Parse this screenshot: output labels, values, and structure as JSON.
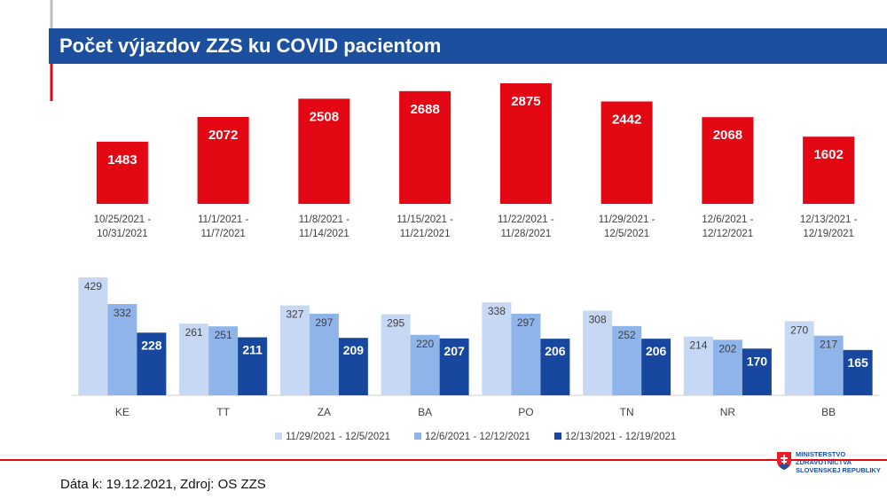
{
  "header": {
    "title": "Počet výjazdov ZZS ku COVID pacientom"
  },
  "chart_data": [
    {
      "type": "bar",
      "color": "#e30613",
      "categories": [
        "10/25/2021 - 10/31/2021",
        "11/1/2021 - 11/7/2021",
        "11/8/2021 - 11/14/2021",
        "11/15/2021 - 11/21/2021",
        "11/22/2021 - 11/28/2021",
        "11/29/2021 - 12/5/2021",
        "12/6/2021 - 12/12/2021",
        "12/13/2021 - 12/19/2021"
      ],
      "values": [
        1483,
        2072,
        2508,
        2688,
        2875,
        2442,
        2068,
        1602
      ]
    },
    {
      "type": "grouped-bar",
      "legend": "bottom",
      "categories": [
        "KE",
        "TT",
        "ZA",
        "BA",
        "PO",
        "TN",
        "NR",
        "BB"
      ],
      "series": [
        {
          "name": "11/29/2021 - 12/5/2021",
          "color": "#c6d8f3",
          "values": [
            429,
            261,
            327,
            295,
            338,
            308,
            214,
            270
          ]
        },
        {
          "name": "12/6/2021 - 12/12/2021",
          "color": "#8fb4e9",
          "values": [
            332,
            251,
            297,
            220,
            297,
            252,
            202,
            217
          ]
        },
        {
          "name": "12/13/2021 - 12/19/2021",
          "color": "#1847a0",
          "values": [
            228,
            211,
            209,
            207,
            206,
            206,
            170,
            165
          ]
        }
      ]
    }
  ],
  "footer": {
    "source": "Dáta k: 19.12.2021, Zdroj: OS ZZS"
  },
  "logo": {
    "lines": [
      "MINISTERSTVO",
      "ZDRAVOTNÍCTVA",
      "SLOVENSKEJ REPUBLIKY"
    ]
  }
}
